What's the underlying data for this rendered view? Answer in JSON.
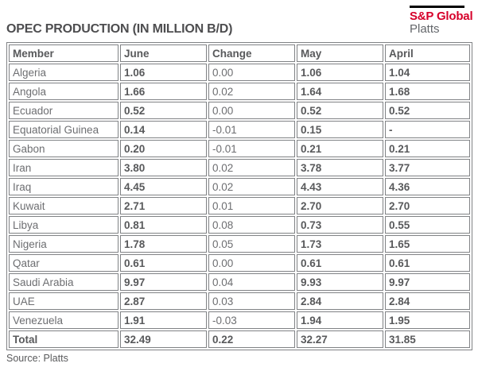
{
  "brand": {
    "name_top": "S&P Global",
    "name_bottom": "Platts",
    "red": "#d6002a",
    "gray": "#63666a"
  },
  "header": {
    "title": "OPEC PRODUCTION (IN MILLION B/D)"
  },
  "footer": {
    "source": "Source: Platts"
  },
  "chart_data": {
    "type": "table",
    "title": "OPEC PRODUCTION (IN MILLION B/D)",
    "columns": [
      "Member",
      "June",
      "Change",
      "May",
      "April"
    ],
    "rows": [
      [
        "Algeria",
        "1.06",
        "0.00",
        "1.06",
        "1.04"
      ],
      [
        "Angola",
        "1.66",
        "0.02",
        "1.64",
        "1.68"
      ],
      [
        "Ecuador",
        "0.52",
        "0.00",
        "0.52",
        "0.52"
      ],
      [
        "Equatorial Guinea",
        "0.14",
        "-0.01",
        "0.15",
        "-"
      ],
      [
        "Gabon",
        "0.20",
        "-0.01",
        "0.21",
        "0.21"
      ],
      [
        "Iran",
        "3.80",
        "0.02",
        "3.78",
        "3.77"
      ],
      [
        "Iraq",
        "4.45",
        "0.02",
        "4.43",
        "4.36"
      ],
      [
        "Kuwait",
        "2.71",
        "0.01",
        "2.70",
        "2.70"
      ],
      [
        "Libya",
        "0.81",
        "0.08",
        "0.73",
        "0.55"
      ],
      [
        "Nigeria",
        "1.78",
        "0.05",
        "1.73",
        "1.65"
      ],
      [
        "Qatar",
        "0.61",
        "0.00",
        "0.61",
        "0.61"
      ],
      [
        "Saudi Arabia",
        "9.97",
        "0.04",
        "9.93",
        "9.97"
      ],
      [
        "UAE",
        "2.87",
        "0.03",
        "2.84",
        "2.84"
      ],
      [
        "Venezuela",
        "1.91",
        "-0.03",
        "1.94",
        "1.95"
      ]
    ],
    "total_row": [
      "Total",
      "32.49",
      "0.22",
      "32.27",
      "31.85"
    ],
    "source": "Source: Platts",
    "colors": {
      "border": "#808285",
      "text_regular": "#6d6e71",
      "text_bold": "#58595b",
      "title": "#4d4d4f"
    }
  }
}
